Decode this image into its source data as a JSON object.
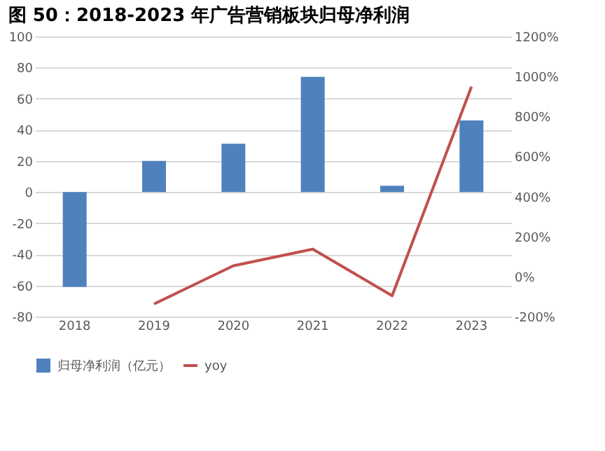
{
  "chart_data": {
    "type": "bar",
    "title": "图 50：2018-2023 年广告营销板块归母净利润",
    "categories": [
      "2018",
      "2019",
      "2020",
      "2021",
      "2022",
      "2023"
    ],
    "series": [
      {
        "name": "归母净利润（亿元）",
        "color": "#4f81bd",
        "values": [
          -61,
          20,
          31,
          74,
          4,
          46
        ]
      },
      {
        "name": "yoy",
        "type": "line",
        "axis": "y2",
        "color": "#c0504d",
        "values": [
          null,
          -137,
          54,
          137,
          -96,
          949
        ]
      }
    ],
    "ylim": [
      -80,
      100
    ],
    "yticks": [
      -80,
      -60,
      -40,
      -20,
      0,
      20,
      40,
      60,
      80,
      100
    ],
    "y2lim": [
      -200,
      1200
    ],
    "y2ticks": [
      {
        "value": -200,
        "label": "-200%"
      },
      {
        "value": 0,
        "label": "0%"
      },
      {
        "value": 200,
        "label": "200%"
      },
      {
        "value": 400,
        "label": "400%"
      },
      {
        "value": 600,
        "label": "600%"
      },
      {
        "value": 800,
        "label": "800%"
      },
      {
        "value": 1000,
        "label": "1000%"
      },
      {
        "value": 1200,
        "label": "1200%"
      }
    ],
    "grid": "y",
    "legend": "bottom",
    "marker": "none",
    "line_style": "solid"
  }
}
